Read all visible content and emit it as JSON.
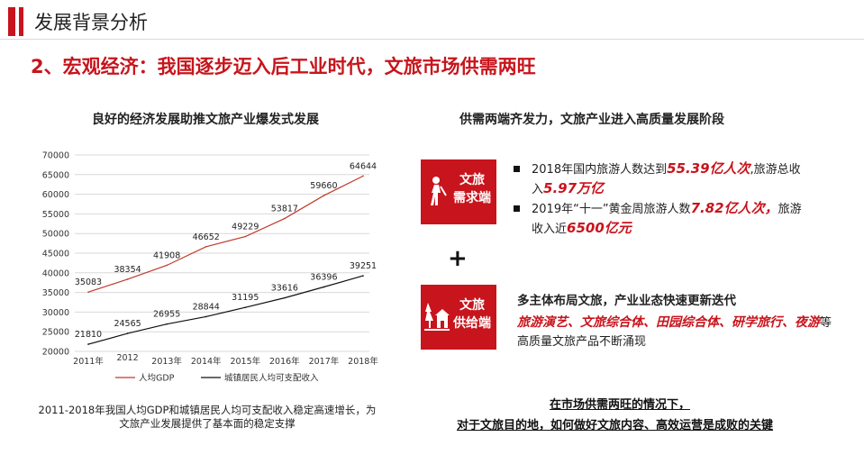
{
  "header": {
    "title": "发展背景分析"
  },
  "subtitle": "2、宏观经济：我国逐步迈入后工业时代，文旅市场供需两旺",
  "chart_title": "良好的经济发展助推文旅产业爆发式发展",
  "chart_data": {
    "type": "line",
    "title": "良好的经济发展助推文旅产业爆发式发展",
    "categories": [
      "2011年",
      "2012",
      "2013年",
      "2014年",
      "2015年",
      "2016年",
      "2017年",
      "2018年"
    ],
    "series": [
      {
        "name": "人均GDP",
        "color": "#c0392b",
        "values": [
          35083,
          38354,
          41908,
          46652,
          49229,
          53817,
          59660,
          64644
        ]
      },
      {
        "name": "城镇居民人均可支配收入",
        "color": "#111111",
        "values": [
          21810,
          24565,
          26955,
          28844,
          31195,
          33616,
          36396,
          39251
        ]
      }
    ],
    "ylim": [
      20000,
      70000
    ],
    "yticks": [
      20000,
      25000,
      30000,
      35000,
      40000,
      45000,
      50000,
      55000,
      60000,
      65000,
      70000
    ],
    "grid": true,
    "legend": "bottom"
  },
  "caption": "2011-2018年我国人均GDP和城镇居民人均可支配收入稳定高速增长，为文旅产业发展提供了基本面的稳定支撑",
  "right_title": "供需两端齐发力，文旅产业进入高质量发展阶段",
  "demand": {
    "label_line1": "文旅",
    "label_line2": "需求端",
    "bullet1": {
      "pre": "2018年国内旅游人数达到",
      "hl1": "55.39亿人次",
      "mid": ",旅游总收入",
      "hl2": "5.97万亿"
    },
    "bullet2": {
      "pre": "2019年“十一”黄金周旅游人数",
      "hl1": "7.82亿人次，",
      "mid": "旅游收入近",
      "hl2": "6500亿元"
    }
  },
  "plus": "+",
  "supply": {
    "label_line1": "文旅",
    "label_line2": "供给端",
    "title": "多主体布局文旅，产业业态快速更新迭代",
    "hl": "旅游演艺、文旅综合体、田园综合体、研学旅行、夜游",
    "rest": "等高质量文旅产品不断涌现"
  },
  "conclusion": {
    "line1": "在市场供需两旺的情况下，",
    "line2": "对于文旅目的地，如何做好文旅内容、高效运营是成败的关键"
  },
  "colors": {
    "accent": "#c8141c"
  }
}
